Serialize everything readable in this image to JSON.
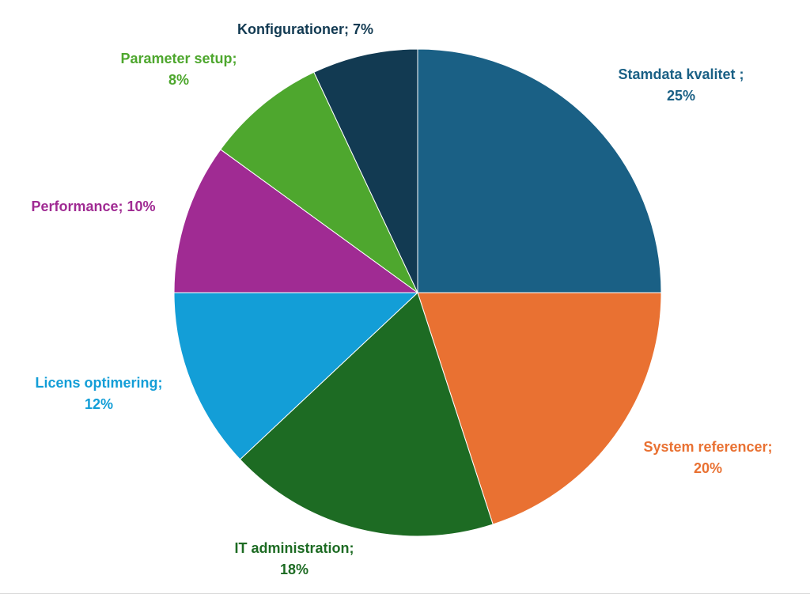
{
  "chart_data": {
    "type": "pie",
    "title": "",
    "legend": "none",
    "start_angle_deg": 0,
    "direction": "clockwise",
    "slices": [
      {
        "label": "Stamdata kvalitet",
        "value": 25,
        "color": "#1a6085",
        "label_text": [
          "Stamdata kvalitet ;",
          "25%"
        ]
      },
      {
        "label": "System referencer",
        "value": 20,
        "color": "#e97132",
        "label_text": [
          "System referencer;",
          "20%"
        ]
      },
      {
        "label": "IT administration",
        "value": 18,
        "color": "#1d6b23",
        "label_text": [
          "IT administration;",
          "18%"
        ]
      },
      {
        "label": "Licens optimering",
        "value": 12,
        "color": "#139ed7",
        "label_text": [
          "Licens optimering;",
          "12%"
        ]
      },
      {
        "label": "Performance",
        "value": 10,
        "color": "#a02b93",
        "label_text": [
          "Performance; 10%"
        ]
      },
      {
        "label": "Parameter setup",
        "value": 8,
        "color": "#4ea72e",
        "label_text": [
          "Parameter setup;",
          "8%"
        ]
      },
      {
        "label": "Konfigurationer",
        "value": 7,
        "color": "#123a52",
        "label_text": [
          "Konfigurationer; 7%"
        ]
      }
    ]
  }
}
